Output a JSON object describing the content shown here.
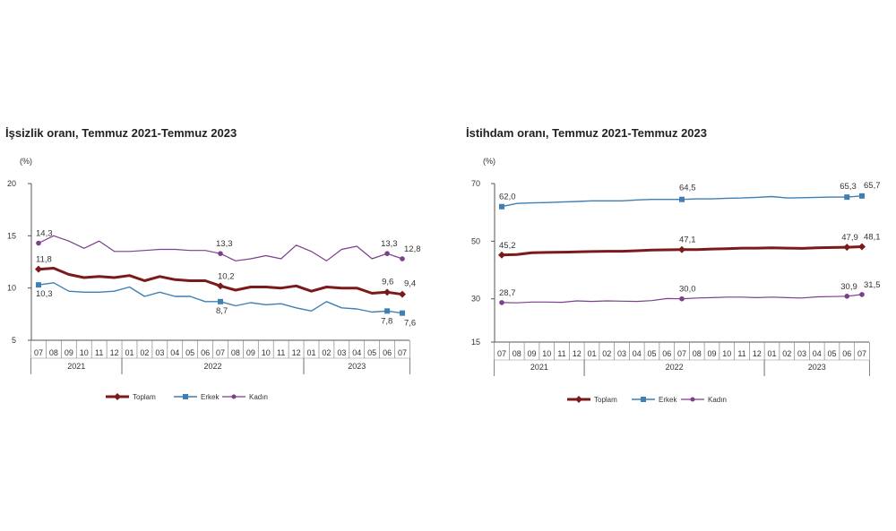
{
  "charts": [
    {
      "id": "issizlik",
      "title": "İşsizlik oranı, Temmuz 2021-Temmuz 2023",
      "ylabel": "(%)",
      "ylim": [
        5,
        20
      ],
      "yticks": [
        5,
        10,
        15,
        20
      ],
      "xtick_labels": [
        "07",
        "08",
        "09",
        "10",
        "11",
        "12",
        "01",
        "02",
        "03",
        "04",
        "05",
        "06",
        "07",
        "08",
        "09",
        "10",
        "11",
        "12",
        "01",
        "02",
        "03",
        "04",
        "05",
        "06",
        "07"
      ],
      "year_groups": [
        {
          "label": "2021",
          "start": 0,
          "end": 5
        },
        {
          "label": "2022",
          "start": 6,
          "end": 17
        },
        {
          "label": "2023",
          "start": 18,
          "end": 24
        }
      ],
      "legend_position": "bottom",
      "colors": {
        "toplam": "#7b1a1a",
        "erkek": "#3f7fb4",
        "kadin": "#7c3f8c"
      }
    },
    {
      "id": "istihdam",
      "title": "İstihdam oranı, Temmuz 2021-Temmuz 2023",
      "ylabel": "(%)",
      "ylim": [
        15,
        70
      ],
      "yticks": [
        15,
        30,
        50,
        70
      ],
      "ytick_labels": [
        "15",
        "30",
        "50",
        "70"
      ],
      "xtick_labels": [
        "07",
        "08",
        "09",
        "10",
        "11",
        "12",
        "01",
        "02",
        "03",
        "04",
        "05",
        "06",
        "07",
        "08",
        "09",
        "10",
        "11",
        "12",
        "01",
        "02",
        "03",
        "04",
        "05",
        "06",
        "07"
      ],
      "year_groups": [
        {
          "label": "2021",
          "start": 0,
          "end": 5
        },
        {
          "label": "2022",
          "start": 6,
          "end": 17
        },
        {
          "label": "2023",
          "start": 18,
          "end": 24
        }
      ],
      "legend_position": "bottom",
      "colors": {
        "toplam": "#7b1a1a",
        "erkek": "#3f7fb4",
        "kadin": "#7c3f8c"
      }
    }
  ],
  "chart_data": [
    {
      "type": "line",
      "title": "İşsizlik oranı, Temmuz 2021-Temmuz 2023",
      "ylabel": "(%)",
      "ylim": [
        5,
        20
      ],
      "categories": [
        "07",
        "08",
        "09",
        "10",
        "11",
        "12",
        "01",
        "02",
        "03",
        "04",
        "05",
        "06",
        "07",
        "08",
        "09",
        "10",
        "11",
        "12",
        "01",
        "02",
        "03",
        "04",
        "05",
        "06",
        "07"
      ],
      "series": [
        {
          "name": "Toplam",
          "color": "#7b1a1a",
          "values": [
            11.8,
            11.9,
            11.3,
            11.0,
            11.1,
            11.0,
            11.2,
            10.7,
            11.1,
            10.8,
            10.7,
            10.7,
            10.2,
            9.8,
            10.1,
            10.1,
            10.0,
            10.2,
            9.7,
            10.1,
            10.0,
            10.0,
            9.5,
            9.6,
            9.4
          ]
        },
        {
          "name": "Erkek",
          "color": "#3f7fb4",
          "values": [
            10.3,
            10.5,
            9.7,
            9.6,
            9.6,
            9.7,
            10.1,
            9.2,
            9.6,
            9.2,
            9.2,
            8.7,
            8.7,
            8.3,
            8.6,
            8.4,
            8.5,
            8.1,
            7.8,
            8.7,
            8.1,
            8.0,
            7.7,
            7.8,
            7.6
          ]
        },
        {
          "name": "Kadın",
          "color": "#7c3f8c",
          "values": [
            14.3,
            15.0,
            14.5,
            13.8,
            14.5,
            13.5,
            13.5,
            13.6,
            13.7,
            13.7,
            13.6,
            13.6,
            13.3,
            12.6,
            12.8,
            13.1,
            12.8,
            14.1,
            13.5,
            12.6,
            13.7,
            14.0,
            12.8,
            13.3,
            12.8
          ]
        }
      ],
      "data_labels": [
        {
          "series": 0,
          "index": 0,
          "text": "11,8"
        },
        {
          "series": 0,
          "index": 12,
          "text": "10,2"
        },
        {
          "series": 0,
          "index": 23,
          "text": "9,6"
        },
        {
          "series": 0,
          "index": 24,
          "text": "9,4"
        },
        {
          "series": 1,
          "index": 0,
          "text": "10,3"
        },
        {
          "series": 1,
          "index": 12,
          "text": "8,7"
        },
        {
          "series": 1,
          "index": 23,
          "text": "7,8"
        },
        {
          "series": 1,
          "index": 24,
          "text": "7,6"
        },
        {
          "series": 2,
          "index": 0,
          "text": "14,3"
        },
        {
          "series": 2,
          "index": 12,
          "text": "13,3"
        },
        {
          "series": 2,
          "index": 23,
          "text": "13,3"
        },
        {
          "series": 2,
          "index": 24,
          "text": "12,8"
        }
      ]
    },
    {
      "type": "line",
      "title": "İstihdam oranı, Temmuz 2021-Temmuz 2023",
      "ylabel": "(%)",
      "ylim": [
        15,
        70
      ],
      "categories": [
        "07",
        "08",
        "09",
        "10",
        "11",
        "12",
        "01",
        "02",
        "03",
        "04",
        "05",
        "06",
        "07",
        "08",
        "09",
        "10",
        "11",
        "12",
        "01",
        "02",
        "03",
        "04",
        "05",
        "06",
        "07"
      ],
      "series": [
        {
          "name": "Toplam",
          "color": "#7b1a1a",
          "values": [
            45.2,
            45.4,
            46.0,
            46.1,
            46.2,
            46.3,
            46.4,
            46.5,
            46.5,
            46.7,
            46.9,
            47.0,
            47.1,
            47.1,
            47.3,
            47.4,
            47.6,
            47.6,
            47.7,
            47.6,
            47.5,
            47.7,
            47.8,
            47.9,
            48.1
          ]
        },
        {
          "name": "Erkek",
          "color": "#3f7fb4",
          "values": [
            62.0,
            63.1,
            63.3,
            63.4,
            63.6,
            63.8,
            64.0,
            64.0,
            64.0,
            64.3,
            64.5,
            64.5,
            64.5,
            64.7,
            64.7,
            64.9,
            65.0,
            65.2,
            65.5,
            65.0,
            65.1,
            65.2,
            65.3,
            65.3,
            65.7
          ]
        },
        {
          "name": "Kadın",
          "color": "#7c3f8c",
          "values": [
            28.7,
            28.6,
            28.9,
            28.9,
            28.8,
            29.3,
            29.1,
            29.3,
            29.2,
            29.1,
            29.4,
            30.1,
            30.0,
            30.3,
            30.4,
            30.6,
            30.6,
            30.4,
            30.6,
            30.4,
            30.3,
            30.7,
            30.8,
            30.9,
            31.5
          ]
        }
      ],
      "data_labels": [
        {
          "series": 0,
          "index": 0,
          "text": "45,2"
        },
        {
          "series": 0,
          "index": 12,
          "text": "47,1"
        },
        {
          "series": 0,
          "index": 23,
          "text": "47,9"
        },
        {
          "series": 0,
          "index": 24,
          "text": "48,1"
        },
        {
          "series": 1,
          "index": 0,
          "text": "62,0"
        },
        {
          "series": 1,
          "index": 12,
          "text": "64,5"
        },
        {
          "series": 1,
          "index": 23,
          "text": "65,3"
        },
        {
          "series": 1,
          "index": 24,
          "text": "65,7"
        },
        {
          "series": 2,
          "index": 0,
          "text": "28,7"
        },
        {
          "series": 2,
          "index": 12,
          "text": "30,0"
        },
        {
          "series": 2,
          "index": 23,
          "text": "30,9"
        },
        {
          "series": 2,
          "index": 24,
          "text": "31,5"
        }
      ]
    }
  ]
}
